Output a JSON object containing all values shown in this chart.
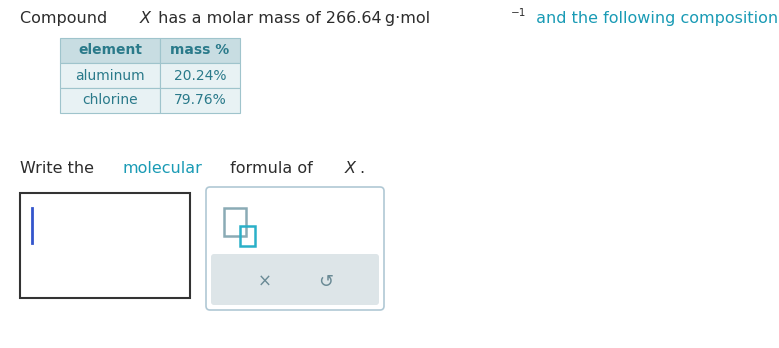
{
  "table_headers": [
    "element",
    "mass %"
  ],
  "table_rows": [
    [
      "aluminum",
      "20.24%"
    ],
    [
      "chlorine",
      "79.76%"
    ]
  ],
  "table_header_bg": "#c8dde2",
  "table_row_bg": "#e8f2f4",
  "table_border_color": "#9fc4cc",
  "text_color": "#2d2d2d",
  "teal_color": "#1a9bb5",
  "table_text_color": "#2a7a8a",
  "answer_box_border": "#333333",
  "cursor_color": "#3355cc",
  "panel_border": "#b0c8d4",
  "toolbar_bg": "#dde5e8",
  "icon_gray": "#8aabb5",
  "icon_teal": "#2ab0c8",
  "toolbar_symbol_color": "#6a8a95",
  "background_color": "#ffffff"
}
